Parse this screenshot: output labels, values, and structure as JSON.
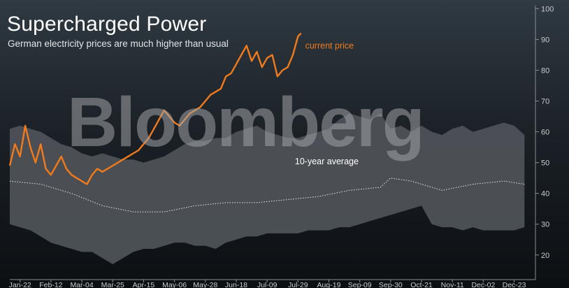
{
  "header": {
    "title": "Supercharged Power",
    "subtitle": "German electricity prices are much higher than usual"
  },
  "watermark": "Bloomberg",
  "colors": {
    "current_price": "#f07a1e",
    "avg_line": "#e8e8e8",
    "range_band": "#4e5257",
    "axis_text": "#c8cbcd"
  },
  "chart_data": {
    "type": "line",
    "title": "Supercharged Power",
    "subtitle": "German electricity prices are much higher than usual",
    "xlabel": "",
    "ylabel": "",
    "ylim": [
      12,
      101
    ],
    "yticks": [
      20,
      30,
      40,
      50,
      60,
      70,
      80,
      90,
      100
    ],
    "x_categories": [
      "Jan-22",
      "Feb-12",
      "Mar-04",
      "Mar-25",
      "Apr-15",
      "May-06",
      "May-28",
      "Jun-18",
      "Jul-09",
      "Jul-29",
      "Aug-19",
      "Sep-09",
      "Sep-30",
      "Oct-21",
      "Nov-11",
      "Dec-02",
      "Dec-23"
    ],
    "x_tick_positions": [
      1,
      4,
      7,
      10,
      13,
      16,
      19,
      22,
      25,
      28,
      31,
      34,
      37,
      40,
      43,
      46,
      49
    ],
    "x_range": [
      0,
      51
    ],
    "grid": false,
    "series": [
      {
        "name": "current price",
        "kind": "line",
        "x": [
          0,
          0.5,
          1,
          1.5,
          2,
          2.5,
          3,
          3.5,
          4,
          4.5,
          5,
          5.5,
          6,
          6.5,
          7,
          7.5,
          8,
          8.5,
          9,
          9.5,
          10,
          10.5,
          11,
          11.5,
          12,
          12.5,
          13,
          13.5,
          14,
          14.5,
          15,
          15.5,
          16,
          16.5,
          17,
          17.5,
          18,
          18.5,
          19,
          19.5,
          20,
          20.5,
          21,
          21.5,
          22,
          22.5,
          23,
          23.5,
          24,
          24.5,
          25,
          25.5,
          26,
          26.5,
          27,
          27.5,
          28,
          28.3
        ],
        "values": [
          49,
          56,
          52,
          62,
          55,
          50,
          56,
          48,
          46,
          49,
          52,
          48,
          46,
          45,
          44,
          43,
          46,
          48,
          47,
          48,
          49,
          50,
          51,
          52,
          53,
          54,
          56,
          58,
          61,
          64,
          67,
          65,
          63,
          62,
          64,
          66,
          67,
          68,
          70,
          72,
          73,
          74,
          78,
          79,
          82,
          85,
          88,
          83,
          86,
          81,
          84,
          85,
          78,
          80,
          81,
          85,
          91,
          92
        ]
      },
      {
        "name": "10-year average",
        "kind": "line-dotted",
        "x": [
          0,
          3,
          6,
          9,
          12,
          15,
          18,
          21,
          24,
          27,
          30,
          33,
          36,
          37,
          39,
          42,
          45,
          48,
          50
        ],
        "values": [
          44,
          43,
          40,
          36,
          34,
          34,
          36,
          37,
          37,
          38,
          39,
          41,
          42,
          45,
          44,
          41,
          43,
          44,
          43
        ]
      },
      {
        "name": "",
        "kind": "band",
        "x": [
          0,
          1,
          2,
          3,
          4,
          5,
          6,
          7,
          8,
          9,
          10,
          11,
          12,
          13,
          14,
          15,
          16,
          17,
          18,
          19,
          20,
          21,
          22,
          23,
          24,
          25,
          26,
          27,
          28,
          29,
          30,
          31,
          32,
          33,
          34,
          35,
          36,
          37,
          38,
          39,
          40,
          41,
          42,
          43,
          44,
          45,
          46,
          47,
          48,
          49,
          50
        ],
        "upper": [
          61,
          62,
          61,
          60,
          58,
          56,
          55,
          53,
          52,
          53,
          52,
          51,
          51,
          50,
          51,
          52,
          54,
          56,
          57,
          57,
          58,
          58,
          60,
          61,
          62,
          60,
          59,
          58,
          58,
          59,
          60,
          61,
          64,
          66,
          65,
          64,
          66,
          61,
          62,
          60,
          62,
          60,
          59,
          61,
          62,
          60,
          61,
          62,
          63,
          62,
          59
        ],
        "lower": [
          30,
          29,
          28,
          26,
          24,
          23,
          22,
          21,
          21,
          19,
          17,
          19,
          21,
          22,
          22,
          23,
          24,
          24,
          23,
          23,
          22,
          24,
          25,
          26,
          26,
          27,
          27,
          27,
          27,
          28,
          28,
          28,
          29,
          29,
          30,
          31,
          32,
          33,
          34,
          35,
          36,
          30,
          29,
          29,
          28,
          29,
          28,
          28,
          28,
          28,
          29
        ]
      }
    ],
    "annotations": [
      {
        "text": "current price",
        "x": 28.7,
        "y": 87,
        "color": "#f07a1e"
      },
      {
        "text": "10-year average",
        "x": 27.7,
        "y": 49.5,
        "color": "#ffffff"
      }
    ]
  }
}
